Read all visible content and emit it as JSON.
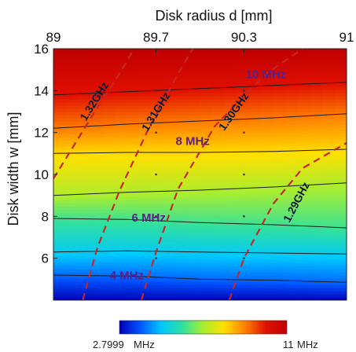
{
  "chart_data": {
    "type": "heatmap",
    "title": "",
    "xlabel": "Disk radius d  [mm]",
    "ylabel": "Disk width w [mm]",
    "xlim": [
      89,
      91
    ],
    "ylim": [
      4,
      16
    ],
    "x_ticks": [
      {
        "value": 89,
        "label": "89"
      },
      {
        "value": 89.7,
        "label": "89.7"
      },
      {
        "value": 90.3,
        "label": "90.3"
      },
      {
        "value": 91,
        "label": "91"
      }
    ],
    "y_ticks": [
      {
        "value": 6,
        "label": "6"
      },
      {
        "value": 8,
        "label": "8"
      },
      {
        "value": 10,
        "label": "10"
      },
      {
        "value": 12,
        "label": "12"
      },
      {
        "value": 14,
        "label": "14"
      },
      {
        "value": 16,
        "label": "16"
      }
    ],
    "colorbar": {
      "min": 2.7999,
      "max": 11,
      "min_label": "2.7999",
      "max_label": "11",
      "unit": "MHz",
      "colors": [
        "#0000b8",
        "#0055ff",
        "#00c8ff",
        "#30e0a0",
        "#a8ee30",
        "#ffe000",
        "#ff8000",
        "#e01000",
        "#c00000"
      ]
    },
    "bandwidth_contours": [
      {
        "value": 4,
        "points": [
          [
            89,
            5.2
          ],
          [
            89.5,
            5.15
          ],
          [
            90,
            5.0
          ],
          [
            90.5,
            4.95
          ],
          [
            91,
            4.85
          ]
        ]
      },
      {
        "value": 5,
        "points": [
          [
            89,
            6.3
          ],
          [
            89.5,
            6.35
          ],
          [
            90,
            6.3
          ],
          [
            90.5,
            6.25
          ],
          [
            91,
            6.2
          ]
        ]
      },
      {
        "value": 6,
        "points": [
          [
            89,
            7.9
          ],
          [
            89.5,
            7.85
          ],
          [
            90,
            7.7
          ],
          [
            90.5,
            7.6
          ],
          [
            91,
            7.45
          ]
        ]
      },
      {
        "value": 7,
        "points": [
          [
            89,
            9.0
          ],
          [
            89.5,
            9.15
          ],
          [
            90,
            9.25
          ],
          [
            90.5,
            9.4
          ],
          [
            91,
            9.6
          ]
        ]
      },
      {
        "value": 8,
        "points": [
          [
            89,
            11.0
          ],
          [
            89.5,
            11.05
          ],
          [
            90,
            11.05
          ],
          [
            90.5,
            11.1
          ],
          [
            91,
            11.2
          ]
        ]
      },
      {
        "value": 9,
        "points": [
          [
            89,
            12.2
          ],
          [
            89.5,
            12.4
          ],
          [
            90,
            12.55
          ],
          [
            90.5,
            12.7
          ],
          [
            91,
            12.9
          ]
        ]
      },
      {
        "value": 10,
        "points": [
          [
            89,
            13.8
          ],
          [
            89.5,
            13.95
          ],
          [
            90,
            14.1
          ],
          [
            90.5,
            14.25
          ],
          [
            91,
            14.4
          ]
        ]
      }
    ],
    "frequency_contours": [
      {
        "label": "1.32GHz",
        "points": [
          [
            89,
            9.8
          ],
          [
            89.15,
            11.5
          ],
          [
            89.3,
            13.2
          ],
          [
            89.45,
            14.8
          ],
          [
            89.55,
            16
          ]
        ]
      },
      {
        "label": "1.31GHz",
        "points": [
          [
            89.2,
            4
          ],
          [
            89.3,
            6.5
          ],
          [
            89.45,
            9.2
          ],
          [
            89.65,
            12.2
          ],
          [
            89.85,
            14.8
          ],
          [
            89.95,
            16
          ]
        ]
      },
      {
        "label": "1.30GHz",
        "points": [
          [
            89.6,
            4
          ],
          [
            89.7,
            6.3
          ],
          [
            89.85,
            9.3
          ],
          [
            90.1,
            12.3
          ],
          [
            90.45,
            14.8
          ],
          [
            90.7,
            16
          ]
        ]
      },
      {
        "label": "1.29GHz",
        "points": [
          [
            90.2,
            4
          ],
          [
            90.3,
            6.0
          ],
          [
            90.5,
            8.6
          ],
          [
            90.7,
            10.3
          ],
          [
            91,
            11.5
          ]
        ]
      }
    ],
    "frequency_label_positions": [
      {
        "label": "1.32GHz",
        "x": 89.3,
        "y": 13.4,
        "angle": -58
      },
      {
        "label": "1.31GHz",
        "x": 89.72,
        "y": 12.9,
        "angle": -58
      },
      {
        "label": "1.30GHz",
        "x": 90.25,
        "y": 12.9,
        "angle": -55
      },
      {
        "label": "1.29GHz",
        "x": 90.68,
        "y": 8.6,
        "angle": -62
      }
    ],
    "bandwidth_labels": [
      {
        "text": "10 MHz",
        "x": 90.45,
        "y": 14.6
      },
      {
        "text": "8 MHz",
        "x": 89.95,
        "y": 11.4
      },
      {
        "text": "6 MHz",
        "x": 89.65,
        "y": 7.75
      },
      {
        "text": "4 MHz",
        "x": 89.5,
        "y": 5.0
      }
    ],
    "field": {
      "description_values": "bandwidth in MHz over (d, w) grid",
      "w_low": 4,
      "w_high": 16,
      "bw_at_w_low": 2.7999,
      "bw_at_w_high": 11
    },
    "grid": false,
    "legend": "colorbar-bottom"
  }
}
